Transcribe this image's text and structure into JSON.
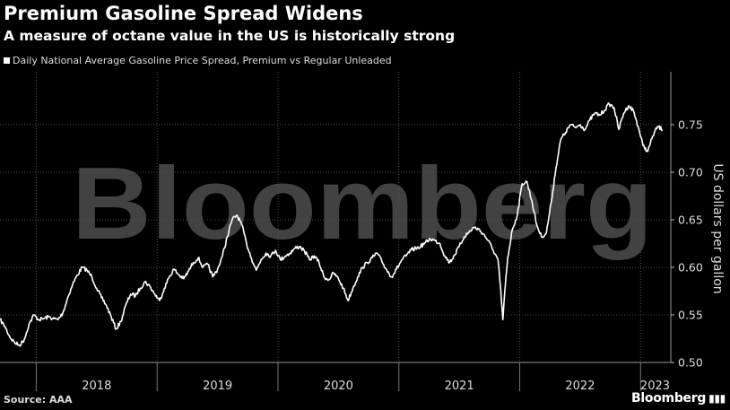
{
  "title": "Premium Gasoline Spread Widens",
  "subtitle": "A measure of octane value in the US is historically strong",
  "source": "Source: AAA",
  "brand": "Bloomberg",
  "watermark": "Bloomberg",
  "colors": {
    "background": "#000000",
    "line": "#ffffff",
    "grid": "#4a4a4a"
  },
  "chart_data": {
    "type": "line",
    "title": "Premium Gasoline Spread Widens",
    "subtitle": "A measure of octane value in the US is historically strong",
    "ylabel": "US dollars per gallon",
    "ylim": [
      0.5,
      0.8
    ],
    "yticks": [
      0.5,
      0.55,
      0.6,
      0.65,
      0.7,
      0.75
    ],
    "xlim": [
      2017.7,
      2023.25
    ],
    "x_tick_labels": [
      "2018",
      "2019",
      "2020",
      "2021",
      "2022",
      "2023"
    ],
    "y_axis_position": "right",
    "grid": "dotted",
    "legend_position": "top-left",
    "series": [
      {
        "name": "Daily National Average Gasoline Price Spread, Premium vs Regular Unleaded",
        "x": [
          2017.7,
          2017.74,
          2017.78,
          2017.82,
          2017.86,
          2017.9,
          2017.94,
          2017.98,
          2018.02,
          2018.06,
          2018.1,
          2018.14,
          2018.18,
          2018.22,
          2018.26,
          2018.3,
          2018.34,
          2018.38,
          2018.42,
          2018.46,
          2018.5,
          2018.54,
          2018.58,
          2018.62,
          2018.66,
          2018.7,
          2018.74,
          2018.78,
          2018.82,
          2018.86,
          2018.9,
          2018.94,
          2018.98,
          2019.02,
          2019.06,
          2019.1,
          2019.14,
          2019.18,
          2019.22,
          2019.26,
          2019.3,
          2019.34,
          2019.38,
          2019.42,
          2019.46,
          2019.5,
          2019.54,
          2019.58,
          2019.62,
          2019.66,
          2019.7,
          2019.74,
          2019.78,
          2019.82,
          2019.86,
          2019.9,
          2019.94,
          2019.98,
          2020.02,
          2020.06,
          2020.1,
          2020.14,
          2020.18,
          2020.22,
          2020.26,
          2020.3,
          2020.34,
          2020.38,
          2020.42,
          2020.46,
          2020.5,
          2020.54,
          2020.58,
          2020.62,
          2020.66,
          2020.7,
          2020.74,
          2020.78,
          2020.82,
          2020.86,
          2020.9,
          2020.94,
          2020.98,
          2021.02,
          2021.06,
          2021.1,
          2021.14,
          2021.18,
          2021.22,
          2021.26,
          2021.3,
          2021.34,
          2021.38,
          2021.42,
          2021.46,
          2021.5,
          2021.54,
          2021.58,
          2021.62,
          2021.66,
          2021.7,
          2021.74,
          2021.78,
          2021.82,
          2021.84,
          2021.86,
          2021.88,
          2021.9,
          2021.94,
          2021.98,
          2022.02,
          2022.06,
          2022.1,
          2022.14,
          2022.18,
          2022.22,
          2022.26,
          2022.3,
          2022.34,
          2022.38,
          2022.42,
          2022.46,
          2022.5,
          2022.54,
          2022.58,
          2022.62,
          2022.66,
          2022.7,
          2022.74,
          2022.78,
          2022.82,
          2022.86,
          2022.9,
          2022.94,
          2022.98,
          2023.02,
          2023.06,
          2023.1,
          2023.14,
          2023.18
        ],
        "values": [
          0.545,
          0.538,
          0.527,
          0.521,
          0.518,
          0.524,
          0.54,
          0.55,
          0.545,
          0.546,
          0.548,
          0.546,
          0.545,
          0.552,
          0.568,
          0.582,
          0.592,
          0.6,
          0.597,
          0.59,
          0.578,
          0.568,
          0.56,
          0.548,
          0.535,
          0.543,
          0.56,
          0.572,
          0.57,
          0.578,
          0.585,
          0.58,
          0.572,
          0.565,
          0.578,
          0.59,
          0.598,
          0.592,
          0.588,
          0.596,
          0.605,
          0.61,
          0.6,
          0.603,
          0.59,
          0.598,
          0.612,
          0.632,
          0.65,
          0.655,
          0.645,
          0.625,
          0.61,
          0.597,
          0.608,
          0.615,
          0.612,
          0.618,
          0.608,
          0.612,
          0.615,
          0.62,
          0.622,
          0.617,
          0.608,
          0.612,
          0.605,
          0.59,
          0.587,
          0.594,
          0.588,
          0.578,
          0.565,
          0.578,
          0.59,
          0.6,
          0.605,
          0.61,
          0.615,
          0.606,
          0.597,
          0.59,
          0.598,
          0.607,
          0.612,
          0.618,
          0.62,
          0.622,
          0.626,
          0.63,
          0.628,
          0.625,
          0.612,
          0.605,
          0.613,
          0.622,
          0.632,
          0.637,
          0.642,
          0.64,
          0.635,
          0.628,
          0.618,
          0.608,
          0.58,
          0.545,
          0.58,
          0.61,
          0.64,
          0.655,
          0.688,
          0.69,
          0.67,
          0.645,
          0.632,
          0.636,
          0.668,
          0.705,
          0.735,
          0.742,
          0.75,
          0.747,
          0.75,
          0.745,
          0.755,
          0.762,
          0.76,
          0.765,
          0.772,
          0.768,
          0.745,
          0.762,
          0.77,
          0.765,
          0.748,
          0.728,
          0.722,
          0.738,
          0.748,
          0.745
        ]
      }
    ]
  }
}
